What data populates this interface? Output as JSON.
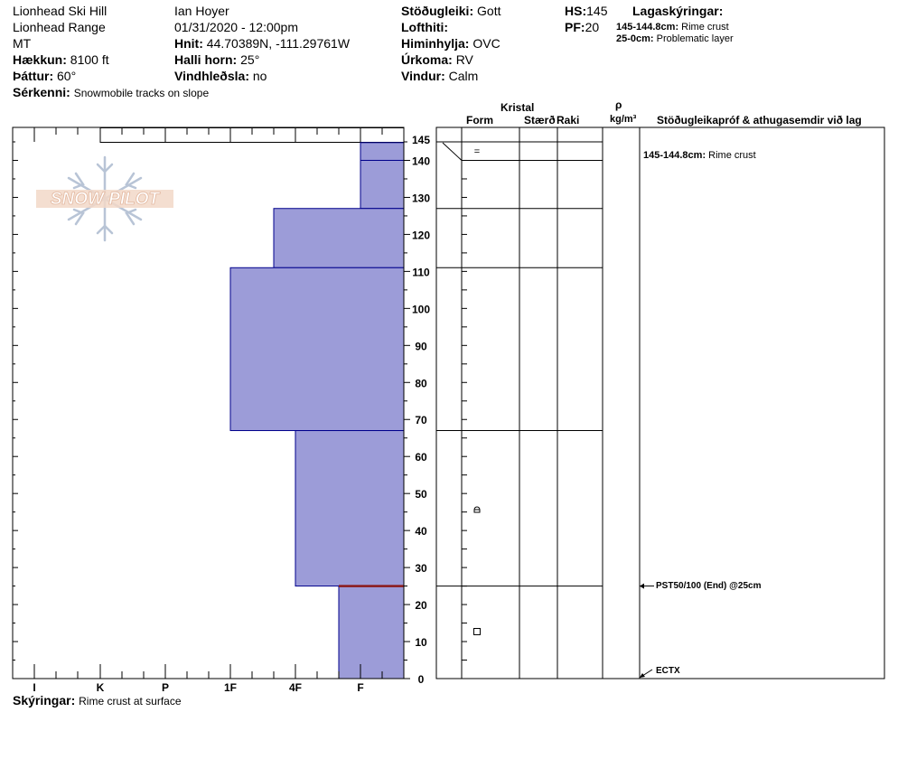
{
  "header": {
    "col1": {
      "line1": "Lionhead Ski Hill",
      "line2": "Lionhead Range",
      "line3": "MT",
      "elevation_label": "Hækkun:",
      "elevation": "8100 ft",
      "aspect_label": "Þáttur:",
      "aspect": "60°"
    },
    "col2": {
      "observer": "Ian Hoyer",
      "datetime": "01/31/2020 - 12:00pm",
      "coords_label": "Hnit:",
      "coords": "44.70389N, -111.29761W",
      "slope_label": "Halli horn:",
      "slope": "25°",
      "wind_label": "Vindhleðsla:",
      "wind": "no"
    },
    "col3": {
      "stability_label": "Stöðugleiki:",
      "stability": "Gott",
      "airtemp_label": "Lofthiti:",
      "airtemp": "",
      "sky_label": "Himinhylja:",
      "sky": "OVC",
      "precip_label": "Úrkoma:",
      "precip": "RV",
      "wind_label": "Vindur:",
      "wind": "Calm"
    },
    "col4": {
      "hs_label": "HS:",
      "hs": "145",
      "pf_label": "PF:",
      "pf": "20"
    },
    "legend": {
      "title": "Lagaskýringar:",
      "items": [
        {
          "range": "145-144.8cm:",
          "desc": "Rime crust"
        },
        {
          "range": "25-0cm:",
          "desc": "Problematic layer"
        }
      ]
    },
    "features_label": "Sérkenni:",
    "features": "Snowmobile tracks on slope"
  },
  "logo": {
    "text": "SNOW PILOT"
  },
  "table_headers": {
    "crystal": "Kristal",
    "form": "Form",
    "size": "Stærð",
    "moisture": "Raki",
    "rho": "ρ",
    "density_unit": "kg/m³",
    "tests": "Stöðugleikapróf & athugasemdir við lag"
  },
  "layer_notes": [
    {
      "range": "145-144.8cm:",
      "desc": "Rime crust"
    }
  ],
  "tests": [
    {
      "text": "PST50/100 (End) @25cm",
      "depth": 25
    },
    {
      "text": "ECTX",
      "depth": 0
    }
  ],
  "footer": {
    "notes_label": "Skýringar:",
    "notes": "Rime crust at surface"
  },
  "colors": {
    "hardness_fill": "#9c9cd8",
    "hardness_stroke": "#00008b",
    "problem_layer": "#8b1a1a"
  },
  "chart_data": {
    "type": "bar",
    "orientation": "horizontal",
    "xlabel": "",
    "ylabel": "",
    "x_categories": [
      "I",
      "K",
      "P",
      "1F",
      "4F",
      "F"
    ],
    "y_ticks": [
      0,
      10,
      20,
      30,
      40,
      50,
      60,
      70,
      80,
      90,
      100,
      110,
      120,
      130,
      140,
      145
    ],
    "ylim": [
      0,
      145
    ],
    "layers": [
      {
        "top": 145,
        "bottom": 144.8,
        "hardness": "I",
        "grain": "="
      },
      {
        "top": 144.8,
        "bottom": 140,
        "hardness": "F",
        "grain": ""
      },
      {
        "top": 140,
        "bottom": 127,
        "hardness": "F",
        "grain": ""
      },
      {
        "top": 127,
        "bottom": 111,
        "hardness": "4F+",
        "grain": ""
      },
      {
        "top": 111,
        "bottom": 67,
        "hardness": "1F",
        "grain": ""
      },
      {
        "top": 67,
        "bottom": 25,
        "hardness": "4F",
        "grain": "faceted-rounded"
      },
      {
        "top": 25,
        "bottom": 0,
        "hardness": "4F-",
        "grain": "faceted"
      }
    ],
    "problem_layer": [
      25,
      0
    ]
  }
}
